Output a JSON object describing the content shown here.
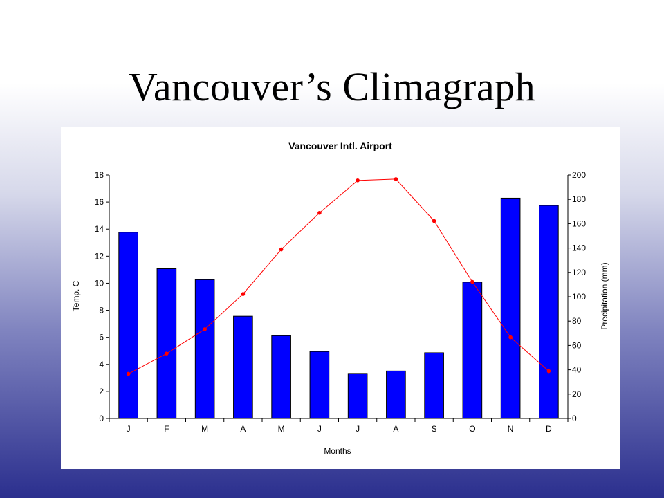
{
  "slide": {
    "title": "Vancouver’s Climagraph"
  },
  "colors": {
    "bars": "#0000ff",
    "line": "#ff0000",
    "axis": "#000000"
  },
  "chart_data": {
    "type": "bar",
    "title": "Vancouver Intl. Airport",
    "xlabel": "Months",
    "ylabel": "Temp. C",
    "y2label": "Precipitation (mm)",
    "categories": [
      "J",
      "F",
      "M",
      "A",
      "M",
      "J",
      "J",
      "A",
      "S",
      "O",
      "N",
      "D"
    ],
    "ylim": [
      0,
      18
    ],
    "y2lim": [
      0,
      200
    ],
    "yticks": [
      0,
      2,
      4,
      6,
      8,
      10,
      12,
      14,
      16,
      18
    ],
    "y2ticks": [
      0,
      20,
      40,
      60,
      80,
      100,
      120,
      140,
      160,
      180,
      200
    ],
    "grid": false,
    "series": [
      {
        "name": "Precipitation (mm)",
        "type": "bar",
        "axis": "right",
        "values": [
          153,
          123,
          114,
          84,
          68,
          55,
          37,
          39,
          54,
          112,
          181,
          175
        ]
      },
      {
        "name": "Temp. C",
        "type": "line",
        "axis": "left",
        "values": [
          3.3,
          4.8,
          6.6,
          9.2,
          12.5,
          15.2,
          17.6,
          17.7,
          14.6,
          10.1,
          6.0,
          3.5
        ]
      }
    ]
  }
}
